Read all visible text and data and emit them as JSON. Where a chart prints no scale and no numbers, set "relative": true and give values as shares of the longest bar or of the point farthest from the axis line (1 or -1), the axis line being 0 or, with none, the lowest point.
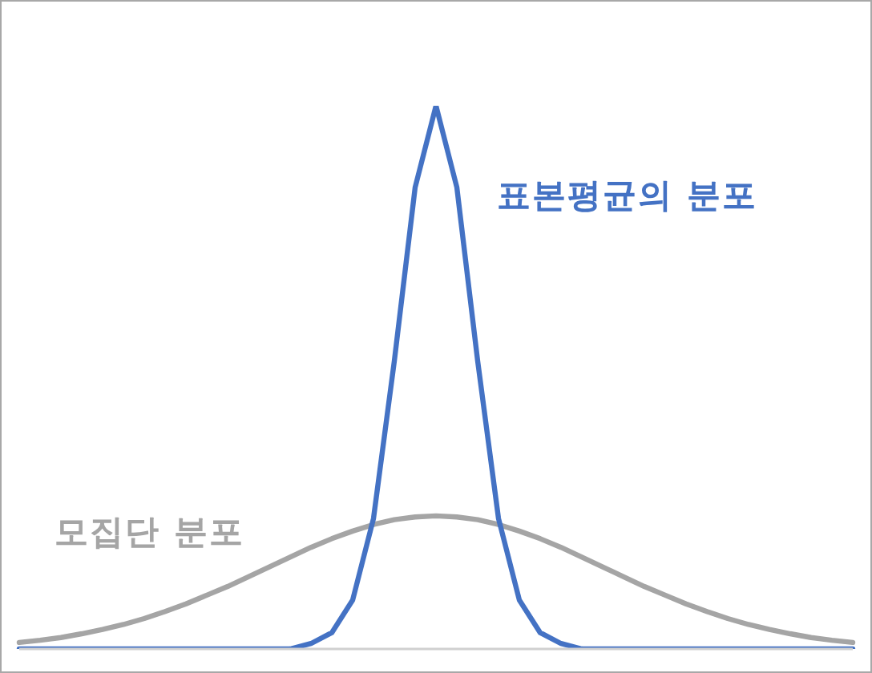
{
  "chart_data": {
    "type": "line",
    "relative": true,
    "tick_labels": false,
    "categories": [
      null,
      null,
      null,
      null,
      null,
      null,
      null,
      null,
      null,
      null,
      null,
      null,
      null,
      null,
      null,
      null,
      null,
      null,
      null,
      null,
      null,
      null,
      null,
      null,
      null,
      null,
      null,
      null,
      null,
      null,
      null,
      null,
      null,
      null,
      null,
      null,
      null,
      null,
      null,
      null,
      null
    ],
    "series": [
      {
        "name": "모집단 분포",
        "color": "#a5a5a5",
        "values": [
          0.012,
          0.016,
          0.021,
          0.028,
          0.036,
          0.045,
          0.056,
          0.069,
          0.083,
          0.099,
          0.115,
          0.133,
          0.151,
          0.169,
          0.187,
          0.203,
          0.217,
          0.229,
          0.238,
          0.243,
          0.245,
          0.243,
          0.238,
          0.229,
          0.217,
          0.203,
          0.187,
          0.169,
          0.151,
          0.133,
          0.115,
          0.099,
          0.083,
          0.069,
          0.056,
          0.045,
          0.036,
          0.028,
          0.021,
          0.016,
          0.012
        ]
      },
      {
        "name": "표본평균의 분포",
        "color": "#4472c4",
        "values": [
          0,
          0,
          0,
          0,
          0,
          0,
          0,
          0,
          0,
          0,
          0,
          0,
          0,
          0,
          0.01,
          0.03,
          0.09,
          0.24,
          0.53,
          0.85,
          1,
          0.85,
          0.53,
          0.24,
          0.09,
          0.03,
          0.01,
          0,
          0,
          0,
          0,
          0,
          0,
          0,
          0,
          0,
          0,
          0,
          0,
          0,
          0
        ]
      }
    ]
  }
}
